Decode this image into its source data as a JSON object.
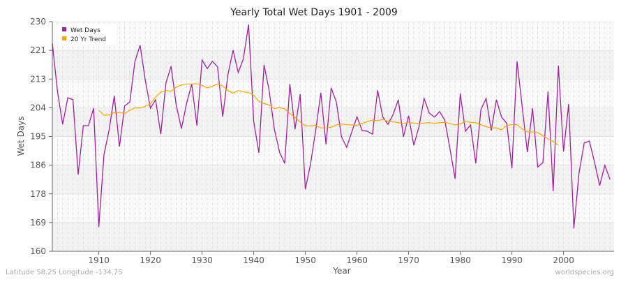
{
  "chart_data": {
    "type": "line",
    "title": "Yearly Total Wet Days 1901 - 2009",
    "xlabel": "Year",
    "ylabel": "Wet Days",
    "ylim": [
      160,
      230
    ],
    "xlim": [
      1901,
      2009
    ],
    "yticks": [
      "160",
      "169",
      "178",
      "186",
      "195",
      "204",
      "213",
      "221",
      "230"
    ],
    "xticks": [
      1910,
      1920,
      1930,
      1940,
      1950,
      1960,
      1970,
      1980,
      1990,
      2000
    ],
    "grid": true,
    "legend_position": "top-left",
    "series": [
      {
        "name": "Wet Days",
        "color": "#a020a0",
        "start_year": 1901,
        "values": [
          223.4,
          208.7,
          198.7,
          206.8,
          206.2,
          183.4,
          198.3,
          198.3,
          203.6,
          167.4,
          189.4,
          197,
          207.4,
          191.9,
          204.3,
          205.5,
          217.9,
          222.8,
          212.1,
          203.6,
          206.2,
          195.7,
          211.3,
          216.4,
          204.5,
          197.4,
          205.1,
          211,
          198.3,
          218.3,
          215.7,
          217.9,
          216.2,
          201,
          213.8,
          221.3,
          214.5,
          218.7,
          229.1,
          199.6,
          190,
          216.8,
          208.9,
          197.2,
          190.2,
          186.8,
          211,
          197.2,
          207.9,
          178.9,
          186.6,
          196.8,
          208.3,
          192.6,
          209.8,
          205.5,
          194.9,
          191.7,
          196.4,
          201,
          196.8,
          196.6,
          195.7,
          209.1,
          200.9,
          198.7,
          201.7,
          206.2,
          194.9,
          201.3,
          192.3,
          197.9,
          206.6,
          202.1,
          200.9,
          202.6,
          200,
          191.3,
          182.1,
          208.1,
          196.6,
          198.5,
          186.8,
          203.2,
          206.6,
          196.8,
          206.2,
          200.9,
          199,
          185.3,
          217.9,
          204,
          190.2,
          203.6,
          185.7,
          187,
          208.7,
          178.3,
          216.6,
          190.4,
          204.9,
          167,
          183.8,
          193,
          193.6,
          187.2,
          180,
          186.2,
          181.9
        ]
      },
      {
        "name": "20 Yr Trend",
        "color": "#ffa500",
        "start_year": 1910,
        "values": [
          203,
          201.5,
          201.5,
          202.3,
          202.3,
          202,
          203,
          203.7,
          203.7,
          204.2,
          205,
          207,
          208.5,
          209,
          208.8,
          210,
          210.7,
          211,
          211,
          211.1,
          210.6,
          209.8,
          210.3,
          211,
          210.4,
          209,
          208.2,
          209,
          208.6,
          208.4,
          207.6,
          205.7,
          205,
          204.6,
          203.5,
          203.8,
          203.4,
          202,
          200.8,
          199.4,
          198.2,
          198.2,
          198.4,
          197.6,
          197.6,
          197.8,
          198.5,
          198.8,
          198.6,
          198.5,
          198.4,
          199,
          199.5,
          200,
          199.8,
          200.2,
          199.6,
          199.5,
          199.2,
          199,
          199.2,
          199.1,
          198.9,
          199.1,
          199.2,
          199,
          199.2,
          199.3,
          199,
          198.5,
          198.8,
          199.6,
          199.3,
          199.2,
          198.6,
          198,
          197.6,
          197.6,
          197,
          198.4,
          198.6,
          198.6,
          197.3,
          196.4,
          196.4,
          196.2,
          195.2,
          194.3,
          193.4,
          192.4
        ]
      }
    ]
  },
  "footer": {
    "left": "Latitude 58.25 Longitude -134.75",
    "right": "worldspecies.org"
  }
}
